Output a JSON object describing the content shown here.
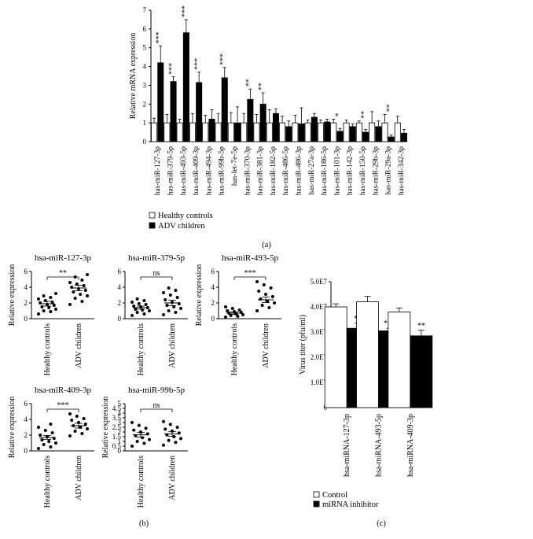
{
  "chart_data": [
    {
      "id": "a",
      "type": "bar",
      "panel_label": "(a)",
      "ylabel": "Relative mRNA expression",
      "ylim": [
        0,
        7
      ],
      "yticks": [
        0,
        1,
        2,
        3,
        4,
        5,
        6,
        7
      ],
      "categories": [
        "has-miR-127-3p",
        "has-miR-379-5p",
        "has-miR-493-5p",
        "has-miR-409-3p",
        "has-miR-494-3p",
        "has-miR-99b-5p",
        "has-let-7e-5p",
        "has-miR-370-3p",
        "has-miR-381-3p",
        "has-miR-182-5p",
        "has-miR-486-5p",
        "has-miR-486-3p",
        "has-miR-27a-3p",
        "has-miR-186-5p",
        "has-miR-101-3p",
        "has-miR-142-3p",
        "has-miR-150-5p",
        "has-miR-29b-3p",
        "has-miR-29a-3p",
        "has-miR-342-3p"
      ],
      "series": [
        {
          "name": "Healthy controls",
          "color": "#ffffff",
          "values": [
            1,
            1,
            1,
            1,
            1,
            1,
            1,
            1,
            1,
            1,
            1,
            1,
            1,
            1,
            1,
            1,
            1,
            1,
            1,
            1
          ],
          "errors": [
            0.25,
            0.45,
            0.2,
            0.5,
            0.4,
            0.5,
            0.55,
            0.5,
            0.45,
            0.7,
            0.35,
            0.4,
            0.15,
            0.15,
            0.2,
            0.15,
            0.1,
            0.6,
            0.45,
            0.35
          ]
        },
        {
          "name": "ADV children",
          "color": "#000000",
          "values": [
            4.2,
            3.2,
            5.8,
            3.15,
            1.2,
            3.4,
            1.0,
            2.25,
            2.0,
            1.5,
            0.8,
            0.95,
            1.3,
            1.05,
            0.55,
            0.8,
            0.5,
            0.8,
            0.25,
            0.45
          ],
          "errors": [
            0.9,
            0.25,
            0.7,
            0.55,
            0.5,
            0.55,
            0.85,
            0.55,
            0.6,
            0.25,
            0.3,
            0.85,
            0.2,
            0.15,
            0.15,
            0.15,
            0.15,
            0.3,
            0.1,
            0.2
          ]
        }
      ],
      "significance": [
        "***",
        "***",
        "***",
        "***",
        "",
        "***",
        "",
        "**",
        "**",
        "",
        "",
        "",
        "",
        "",
        "*",
        "",
        "**",
        "",
        "**",
        ""
      ],
      "legend": [
        "Healthy controls",
        "ADV children"
      ],
      "legend_position": "bottom-left"
    },
    {
      "id": "b",
      "type": "scatter",
      "panel_label": "(b)",
      "plots": [
        {
          "title": "hsa-miR-127-3p",
          "ylabel": "Relative expression",
          "ylim": [
            0,
            6
          ],
          "yticks": [
            0,
            2,
            4,
            6
          ],
          "groups": [
            "Healthy controls",
            "ADV children"
          ],
          "significance": "**",
          "points": [
            [
              0.6,
              0.9,
              1.0,
              1.2,
              1.4,
              1.5,
              1.7,
              1.8,
              2.0,
              2.1,
              2.3,
              2.5,
              2.7,
              2.9,
              3.2
            ],
            [
              1.8,
              2.2,
              2.6,
              2.9,
              3.1,
              3.4,
              3.6,
              3.8,
              4.0,
              4.2,
              4.4,
              4.6,
              4.9,
              5.3,
              5.6
            ]
          ],
          "means": [
            1.9,
            3.9
          ],
          "sems": [
            0.3,
            0.35
          ]
        },
        {
          "title": "hsa-miR-379-5p",
          "ylabel": "",
          "ylim": [
            0,
            6
          ],
          "yticks": [
            0,
            2,
            4,
            6
          ],
          "groups": [
            "Healthy controls",
            "ADV children"
          ],
          "significance": "ns",
          "points": [
            [
              0.4,
              0.6,
              0.8,
              1.0,
              1.1,
              1.2,
              1.4,
              1.5,
              1.6,
              1.8,
              1.9,
              2.1,
              2.3,
              2.5
            ],
            [
              0.5,
              0.8,
              1.0,
              1.3,
              1.5,
              1.7,
              1.9,
              2.1,
              2.4,
              2.7,
              3.0,
              3.3,
              3.6,
              3.9
            ]
          ],
          "means": [
            1.4,
            2.0
          ],
          "sems": [
            0.2,
            0.35
          ]
        },
        {
          "title": "hsa-miR-493-5p",
          "ylabel": "Relative expression",
          "ylim": [
            0,
            6
          ],
          "yticks": [
            0,
            2,
            4,
            6
          ],
          "groups": [
            "Healthy controls",
            "ADV children"
          ],
          "significance": "***",
          "points": [
            [
              0.2,
              0.3,
              0.4,
              0.5,
              0.6,
              0.7,
              0.8,
              0.9,
              1.0,
              1.1,
              1.3,
              1.5
            ],
            [
              1.0,
              1.4,
              1.7,
              2.0,
              2.2,
              2.5,
              2.8,
              3.1,
              3.5,
              3.9,
              4.3,
              4.7
            ]
          ],
          "means": [
            0.7,
            2.4
          ],
          "sems": [
            0.15,
            0.35
          ]
        },
        {
          "title": "hsa-miR-409-3p",
          "ylabel": "Relative expression",
          "ylim": [
            0,
            6
          ],
          "yticks": [
            0,
            2,
            4,
            6
          ],
          "groups": [
            "Healthy controls",
            "ADV children"
          ],
          "significance": "***",
          "points": [
            [
              0.3,
              0.5,
              0.8,
              1.0,
              1.2,
              1.4,
              1.6,
              1.8,
              2.0,
              2.3,
              2.6,
              3.0,
              3.4
            ],
            [
              1.9,
              2.2,
              2.5,
              2.8,
              3.0,
              3.2,
              3.4,
              3.6,
              3.9,
              4.1,
              4.4,
              4.7
            ]
          ],
          "means": [
            1.7,
            3.2
          ],
          "sems": [
            0.25,
            0.3
          ]
        },
        {
          "title": "hsa-miR-99b-5p",
          "ylabel": "Relative expression",
          "ylim": [
            0,
            5
          ],
          "yticks": [
            0,
            0.5,
            1,
            1.5,
            2,
            2.5,
            3,
            3.5,
            4,
            4.5,
            5
          ],
          "groups": [
            "Healthy controls",
            "ADV children"
          ],
          "significance": "ns",
          "points": [
            [
              0.5,
              0.8,
              1.0,
              1.2,
              1.4,
              1.6,
              1.8,
              2.0,
              2.2,
              2.4,
              2.7,
              3.0
            ],
            [
              0.6,
              0.9,
              1.1,
              1.3,
              1.5,
              1.7,
              1.9,
              2.1,
              2.3,
              2.5,
              2.8,
              3.1
            ]
          ],
          "means": [
            1.7,
            1.8
          ],
          "sems": [
            0.25,
            0.25
          ]
        }
      ]
    },
    {
      "id": "c",
      "type": "bar",
      "panel_label": "(c)",
      "ylabel": "Virus titer (pfu/ml)",
      "ylim": [
        0,
        5
      ],
      "yticks": [
        0,
        1,
        2,
        3,
        4,
        5
      ],
      "ytick_labels": [
        "0",
        "1.0E7",
        "2.0E7",
        "3.0E7",
        "4.0E7",
        "5.0E7"
      ],
      "categories": [
        "hsa-miRNA-127-3p",
        "hsa-miRNA-493-5p",
        "hsa-miRNA-409-3p"
      ],
      "series": [
        {
          "name": "Control",
          "color": "#ffffff",
          "values": [
            4.0,
            4.2,
            3.8
          ],
          "errors": [
            0.12,
            0.22,
            0.15
          ]
        },
        {
          "name": "miRNA inhibitor",
          "color": "#000000",
          "values": [
            3.15,
            3.05,
            2.85
          ],
          "errors": [
            0.2,
            0.1,
            0.22
          ]
        }
      ],
      "significance": [
        "**",
        "***",
        "**"
      ],
      "legend": [
        "Control",
        "miRNA inhibitor"
      ],
      "legend_position": "bottom-left"
    }
  ]
}
